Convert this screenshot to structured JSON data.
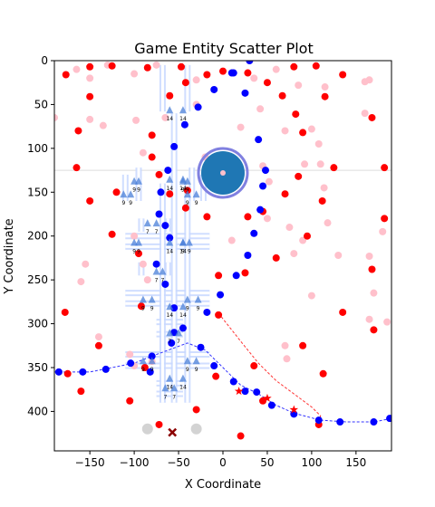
{
  "chart_data": {
    "type": "scatter",
    "title": "Game Entity Scatter Plot",
    "xlabel": "X Coordinate",
    "ylabel": "Y Coordinate",
    "xlim": [
      -190,
      190
    ],
    "ylim": [
      445,
      0
    ],
    "y_inverted": true,
    "x_ticks": [
      -150,
      -100,
      -50,
      0,
      50,
      100,
      150
    ],
    "y_ticks": [
      0,
      50,
      100,
      150,
      200,
      250,
      300,
      350,
      400
    ],
    "grid": false,
    "colors": {
      "red": "#ff0000",
      "pink": "#ffc0cb",
      "blue": "#0000ff",
      "light_blue": "#4a7fd8",
      "path_blue": "#c8d8ff",
      "player": "#1f77b4",
      "player_ring": "#8080e0",
      "gray": "#d3d3d3",
      "dark_red": "#8b0000"
    },
    "red_points": [
      [
        -177,
        16
      ],
      [
        -150,
        7
      ],
      [
        -125,
        6
      ],
      [
        -85,
        8
      ],
      [
        -47,
        7
      ],
      [
        -18,
        16
      ],
      [
        0,
        12
      ],
      [
        28,
        14
      ],
      [
        -150,
        41
      ],
      [
        -60,
        40
      ],
      [
        -42,
        25
      ],
      [
        50,
        25
      ],
      [
        80,
        7
      ],
      [
        105,
        6
      ],
      [
        135,
        16
      ],
      [
        115,
        41
      ],
      [
        67,
        40
      ],
      [
        82,
        61
      ],
      [
        -163,
        80
      ],
      [
        -80,
        85
      ],
      [
        90,
        82
      ],
      [
        -80,
        110
      ],
      [
        -165,
        122
      ],
      [
        -72,
        130
      ],
      [
        -60,
        152
      ],
      [
        -40,
        148
      ],
      [
        -120,
        150
      ],
      [
        -150,
        160
      ],
      [
        -42,
        168
      ],
      [
        -18,
        178
      ],
      [
        28,
        178
      ],
      [
        45,
        172
      ],
      [
        70,
        152
      ],
      [
        85,
        132
      ],
      [
        112,
        160
      ],
      [
        125,
        122
      ],
      [
        168,
        65
      ],
      [
        182,
        122
      ],
      [
        182,
        180
      ],
      [
        95,
        200
      ],
      [
        -125,
        198
      ],
      [
        -95,
        220
      ],
      [
        -92,
        280
      ],
      [
        -5,
        245
      ],
      [
        25,
        242
      ],
      [
        60,
        225
      ],
      [
        168,
        238
      ],
      [
        -178,
        287
      ],
      [
        -5,
        290
      ],
      [
        135,
        287
      ],
      [
        -140,
        325
      ],
      [
        -88,
        350
      ],
      [
        -8,
        360
      ],
      [
        35,
        348
      ],
      [
        90,
        325
      ],
      [
        113,
        357
      ],
      [
        170,
        307
      ],
      [
        -175,
        357
      ],
      [
        -160,
        377
      ],
      [
        -105,
        388
      ],
      [
        -72,
        415
      ],
      [
        -30,
        398
      ],
      [
        20,
        428
      ],
      [
        45,
        388
      ],
      [
        108,
        415
      ]
    ],
    "pink_points": [
      [
        -190,
        65
      ],
      [
        -165,
        10
      ],
      [
        -150,
        20
      ],
      [
        -130,
        5
      ],
      [
        -100,
        15
      ],
      [
        -75,
        5
      ],
      [
        -30,
        22
      ],
      [
        35,
        20
      ],
      [
        60,
        10
      ],
      [
        85,
        28
      ],
      [
        115,
        30
      ],
      [
        160,
        24
      ],
      [
        165,
        22
      ],
      [
        -150,
        67
      ],
      [
        -135,
        74
      ],
      [
        -98,
        68
      ],
      [
        -65,
        65
      ],
      [
        -30,
        50
      ],
      [
        20,
        76
      ],
      [
        42,
        55
      ],
      [
        70,
        80
      ],
      [
        108,
        95
      ],
      [
        100,
        78
      ],
      [
        160,
        60
      ],
      [
        -90,
        105
      ],
      [
        -20,
        110
      ],
      [
        45,
        120
      ],
      [
        52,
        138
      ],
      [
        92,
        118
      ],
      [
        110,
        118
      ],
      [
        114,
        145
      ],
      [
        118,
        185
      ],
      [
        -100,
        200
      ],
      [
        -155,
        232
      ],
      [
        -90,
        232
      ],
      [
        -85,
        250
      ],
      [
        -160,
        252
      ],
      [
        10,
        205
      ],
      [
        50,
        180
      ],
      [
        75,
        190
      ],
      [
        80,
        220
      ],
      [
        90,
        205
      ],
      [
        100,
        268
      ],
      [
        130,
        222
      ],
      [
        165,
        223
      ],
      [
        180,
        195
      ],
      [
        170,
        265
      ],
      [
        185,
        298
      ],
      [
        -140,
        315
      ],
      [
        -105,
        335
      ],
      [
        -100,
        348
      ],
      [
        -80,
        343
      ],
      [
        70,
        325
      ],
      [
        72,
        340
      ],
      [
        165,
        295
      ]
    ],
    "blue_points": [
      [
        -185,
        355
      ],
      [
        -158,
        355
      ],
      [
        -132,
        352
      ],
      [
        -104,
        345
      ],
      [
        -80,
        337
      ],
      [
        -82,
        355
      ],
      [
        -75,
        232
      ],
      [
        -65,
        255
      ],
      [
        -60,
        202
      ],
      [
        -65,
        188
      ],
      [
        -72,
        175
      ],
      [
        -70,
        150
      ],
      [
        -62,
        125
      ],
      [
        -55,
        98
      ],
      [
        -43,
        73
      ],
      [
        -28,
        53
      ],
      [
        -10,
        33
      ],
      [
        10,
        14
      ],
      [
        12,
        14
      ],
      [
        30,
        0
      ],
      [
        25,
        37
      ],
      [
        40,
        90
      ],
      [
        45,
        143
      ],
      [
        48,
        125
      ],
      [
        42,
        170
      ],
      [
        28,
        222
      ],
      [
        35,
        197
      ],
      [
        15,
        245
      ],
      [
        -3,
        267
      ],
      [
        -18,
        287
      ],
      [
        -45,
        305
      ],
      [
        -25,
        327
      ],
      [
        -10,
        348
      ],
      [
        12,
        366
      ],
      [
        25,
        377
      ],
      [
        38,
        378
      ],
      [
        55,
        393
      ],
      [
        80,
        403
      ],
      [
        108,
        410
      ],
      [
        132,
        412
      ],
      [
        170,
        412
      ],
      [
        188,
        408
      ],
      [
        -58,
        322
      ],
      [
        -55,
        282
      ],
      [
        -55,
        310
      ]
    ],
    "light_blue_markers": [
      {
        "x": -60,
        "y": 56,
        "label": "14"
      },
      {
        "x": -45,
        "y": 56,
        "label": "14"
      },
      {
        "x": -100,
        "y": 137,
        "label": "9"
      },
      {
        "x": -95,
        "y": 137,
        "label": "9"
      },
      {
        "x": -45,
        "y": 137,
        "label": "9"
      },
      {
        "x": -40,
        "y": 137,
        "label": "9"
      },
      {
        "x": -60,
        "y": 135,
        "label": "14"
      },
      {
        "x": -45,
        "y": 135,
        "label": "14"
      },
      {
        "x": -112,
        "y": 152,
        "label": "9"
      },
      {
        "x": -104,
        "y": 152,
        "label": "9"
      },
      {
        "x": -40,
        "y": 152,
        "label": "9"
      },
      {
        "x": -30,
        "y": 152,
        "label": "9"
      },
      {
        "x": -85,
        "y": 185,
        "label": "7"
      },
      {
        "x": -75,
        "y": 185,
        "label": "7"
      },
      {
        "x": -100,
        "y": 207,
        "label": "9"
      },
      {
        "x": -95,
        "y": 207,
        "label": "9"
      },
      {
        "x": -45,
        "y": 207,
        "label": "9"
      },
      {
        "x": -38,
        "y": 207,
        "label": "9"
      },
      {
        "x": -60,
        "y": 207,
        "label": "14"
      },
      {
        "x": -45,
        "y": 207,
        "label": "14"
      },
      {
        "x": -75,
        "y": 240,
        "label": "7"
      },
      {
        "x": -68,
        "y": 240,
        "label": "7"
      },
      {
        "x": -90,
        "y": 272,
        "label": "9"
      },
      {
        "x": -80,
        "y": 272,
        "label": "9"
      },
      {
        "x": -40,
        "y": 272,
        "label": "9"
      },
      {
        "x": -28,
        "y": 272,
        "label": "9"
      },
      {
        "x": -60,
        "y": 280,
        "label": "14"
      },
      {
        "x": -45,
        "y": 280,
        "label": "14"
      },
      {
        "x": -60,
        "y": 310,
        "label": "7"
      },
      {
        "x": -50,
        "y": 310,
        "label": "7"
      },
      {
        "x": -90,
        "y": 342,
        "label": "9"
      },
      {
        "x": -80,
        "y": 342,
        "label": "9"
      },
      {
        "x": -40,
        "y": 342,
        "label": "9"
      },
      {
        "x": -30,
        "y": 342,
        "label": "9"
      },
      {
        "x": -60,
        "y": 362,
        "label": "14"
      },
      {
        "x": -45,
        "y": 362,
        "label": "14"
      },
      {
        "x": -65,
        "y": 373,
        "label": "7"
      },
      {
        "x": -55,
        "y": 373,
        "label": "7"
      }
    ],
    "paths": [
      [
        [
          -68,
          5
        ],
        [
          -68,
          58
        ]
      ],
      [
        [
          -40,
          5
        ],
        [
          -40,
          58
        ]
      ],
      [
        [
          -110,
          130
        ],
        [
          -110,
          160
        ]
      ],
      [
        [
          -95,
          122
        ],
        [
          -95,
          160
        ]
      ],
      [
        [
          -35,
          122
        ],
        [
          -35,
          160
        ]
      ],
      [
        [
          -22,
          130
        ],
        [
          -22,
          160
        ]
      ],
      [
        [
          -92,
          180
        ],
        [
          -92,
          195
        ]
      ],
      [
        [
          -62,
          180
        ],
        [
          -62,
          195
        ]
      ],
      [
        [
          -110,
          200
        ],
        [
          -15,
          200
        ]
      ],
      [
        [
          -110,
          212
        ],
        [
          -15,
          212
        ]
      ],
      [
        [
          -92,
          230
        ],
        [
          -92,
          245
        ]
      ],
      [
        [
          -62,
          230
        ],
        [
          -62,
          245
        ]
      ],
      [
        [
          -110,
          265
        ],
        [
          -15,
          265
        ]
      ],
      [
        [
          -110,
          277
        ],
        [
          -15,
          277
        ]
      ],
      [
        [
          -75,
          298
        ],
        [
          -45,
          298
        ]
      ],
      [
        [
          -75,
          312
        ],
        [
          -45,
          312
        ]
      ],
      [
        [
          -110,
          335
        ],
        [
          -15,
          335
        ]
      ],
      [
        [
          -110,
          348
        ],
        [
          -15,
          348
        ]
      ],
      [
        [
          -75,
          368
        ],
        [
          -45,
          368
        ]
      ],
      [
        [
          -75,
          380
        ],
        [
          -45,
          380
        ]
      ],
      [
        [
          -68,
          140
        ],
        [
          -68,
          390
        ]
      ],
      [
        [
          -40,
          140
        ],
        [
          -40,
          390
        ]
      ],
      [
        [
          -55,
          60
        ],
        [
          -55,
          390
        ]
      ]
    ],
    "player": {
      "x": 0,
      "y": 128,
      "size": 25
    },
    "red_stars": [
      [
        18,
        377
      ],
      [
        50,
        385
      ],
      [
        80,
        398
      ]
    ],
    "gray_circles": [
      [
        -85,
        420
      ],
      [
        -30,
        420
      ]
    ],
    "dark_red_x": [
      [
        -57,
        424
      ]
    ],
    "blue_curve": [
      [
        -190,
        355
      ],
      [
        -150,
        355
      ],
      [
        -100,
        345
      ],
      [
        -80,
        337
      ],
      [
        -40,
        322
      ],
      [
        -20,
        330
      ],
      [
        0,
        350
      ],
      [
        20,
        370
      ],
      [
        40,
        380
      ],
      [
        60,
        393
      ],
      [
        80,
        402
      ],
      [
        110,
        410
      ],
      [
        140,
        412
      ],
      [
        170,
        412
      ],
      [
        190,
        408
      ]
    ],
    "red_curve": [
      [
        -5,
        288
      ],
      [
        20,
        320
      ],
      [
        40,
        345
      ],
      [
        60,
        365
      ],
      [
        80,
        380
      ],
      [
        100,
        395
      ],
      [
        110,
        405
      ],
      [
        108,
        415
      ]
    ],
    "hline_y": 125
  }
}
